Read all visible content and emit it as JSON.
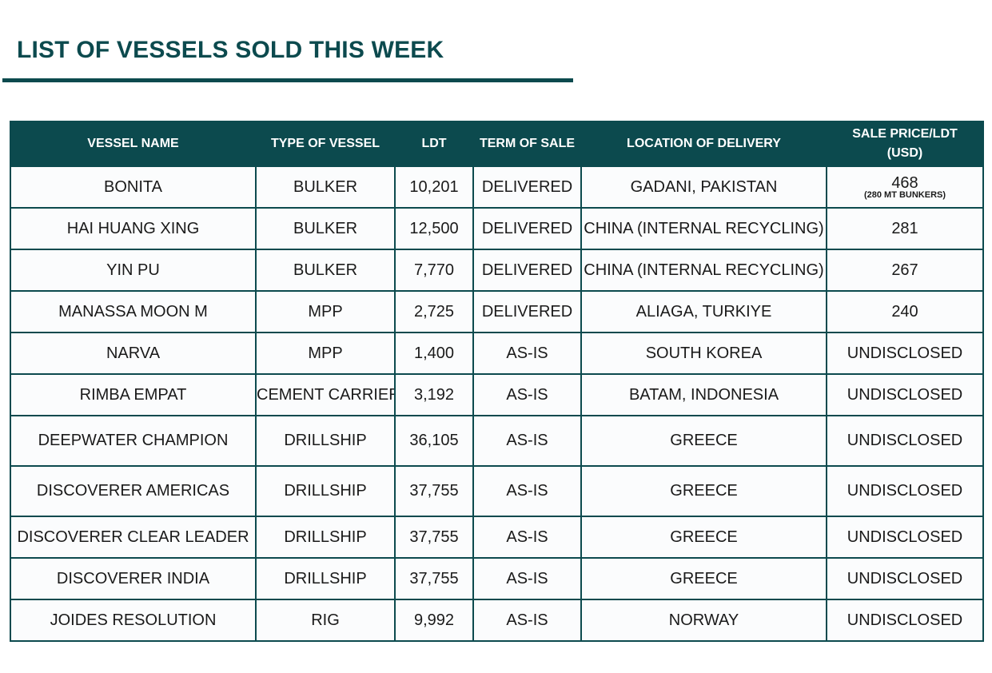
{
  "title": "LIST OF VESSELS SOLD THIS WEEK",
  "accent_color": "#0c4a4e",
  "table": {
    "headers": {
      "vessel_name": "VESSEL NAME",
      "type_of_vessel": "TYPE OF VESSEL",
      "ldt": "LDT",
      "term_of_sale": "TERM OF SALE",
      "location_of_delivery": "LOCATION OF DELIVERY",
      "sale_price_line1": "SALE PRICE/LDT",
      "sale_price_line2": "(USD)"
    },
    "rows": [
      {
        "name": "BONITA",
        "type": "BULKER",
        "ldt": "10,201",
        "term": "DELIVERED",
        "location": "GADANI, PAKISTAN",
        "price": "468",
        "note": "(280 MT BUNKERS)"
      },
      {
        "name": "HAI HUANG XING",
        "type": "BULKER",
        "ldt": "12,500",
        "term": "DELIVERED",
        "location": "CHINA (INTERNAL RECYCLING)",
        "price": "281"
      },
      {
        "name": "YIN PU",
        "type": "BULKER",
        "ldt": "7,770",
        "term": "DELIVERED",
        "location": "CHINA (INTERNAL RECYCLING)",
        "price": "267"
      },
      {
        "name": "MANASSA MOON M",
        "type": "MPP",
        "ldt": "2,725",
        "term": "DELIVERED",
        "location": "ALIAGA, TURKIYE",
        "price": "240"
      },
      {
        "name": "NARVA",
        "type": "MPP",
        "ldt": "1,400",
        "term": "AS-IS",
        "location": "SOUTH KOREA",
        "price": "UNDISCLOSED"
      },
      {
        "name": "RIMBA EMPAT",
        "type": "CEMENT CARRIER",
        "ldt": "3,192",
        "term": "AS-IS",
        "location": "BATAM, INDONESIA",
        "price": "UNDISCLOSED"
      },
      {
        "name": "DEEPWATER CHAMPION",
        "type": "DRILLSHIP",
        "ldt": "36,105",
        "term": "AS-IS",
        "location": "GREECE",
        "price": "UNDISCLOSED"
      },
      {
        "name": "DISCOVERER AMERICAS",
        "type": "DRILLSHIP",
        "ldt": "37,755",
        "term": "AS-IS",
        "location": "GREECE",
        "price": "UNDISCLOSED"
      },
      {
        "name": "DISCOVERER CLEAR LEADER",
        "type": "DRILLSHIP",
        "ldt": "37,755",
        "term": "AS-IS",
        "location": "GREECE",
        "price": "UNDISCLOSED"
      },
      {
        "name": "DISCOVERER INDIA",
        "type": "DRILLSHIP",
        "ldt": "37,755",
        "term": "AS-IS",
        "location": "GREECE",
        "price": "UNDISCLOSED"
      },
      {
        "name": "JOIDES RESOLUTION",
        "type": "RIG",
        "ldt": "9,992",
        "term": "AS-IS",
        "location": "NORWAY",
        "price": "UNDISCLOSED"
      }
    ]
  }
}
